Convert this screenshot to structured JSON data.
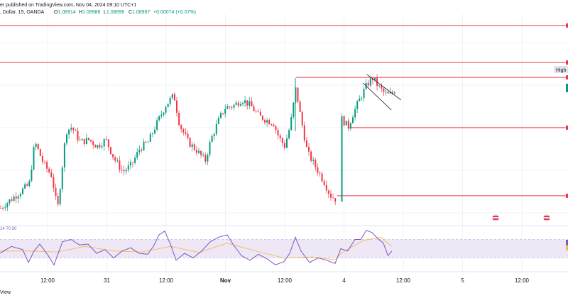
{
  "header": {
    "text": "er published on TradingView.com, Nov 04, 2024 09:10 UTC+1",
    "symbol_line": ", Dollar, 15, OANDA",
    "ohlc": [
      {
        "label": "O",
        "value": "1.08914"
      },
      {
        "label": "H",
        "value": "1.08988"
      },
      {
        "label": "L",
        "value": "1.08896"
      },
      {
        "label": "C",
        "value": "1.08987"
      }
    ],
    "change": "+0.00074 (+0.07%)"
  },
  "high_label": "High",
  "rsi_label": "14 70 30",
  "footer_text": "View",
  "colors": {
    "up": "#089981",
    "down": "#f23645",
    "level": "#f23645",
    "rsi_line": "#7e57c2",
    "rsi_ma": "#f5b942",
    "rsi_band": "#ede7f6",
    "grid": "#f0f3fa"
  },
  "chart_data": {
    "type": "candlestick",
    "x_ticks": [
      "12:00",
      "31",
      "12:00",
      "Nov",
      "12:00",
      "4",
      "12:00",
      "5",
      "12:00"
    ],
    "x_ticks_bold": [
      "Nov"
    ],
    "price_range": [
      0,
      100
    ],
    "horizontal_levels": [
      {
        "y": 94.7,
        "x_start": 0,
        "x_end": 1
      },
      {
        "y": 77.3,
        "x_start": 0,
        "x_end": 1
      },
      {
        "y": 70.3,
        "x_start": 0.521,
        "x_end": 1
      },
      {
        "y": 46.7,
        "x_start": 0.615,
        "x_end": 1
      },
      {
        "y": 14.7,
        "x_start": 0.594,
        "x_end": 1
      }
    ],
    "trend_channel": [
      {
        "from": [
          0.646,
          71.7
        ],
        "to": [
          0.706,
          59.7
        ]
      },
      {
        "from": [
          0.639,
          67.7
        ],
        "to": [
          0.689,
          55.0
        ]
      }
    ],
    "price_path": [
      [
        0.0,
        9
      ],
      [
        0.05,
        20
      ],
      [
        0.06,
        40
      ],
      [
        0.075,
        30
      ],
      [
        0.09,
        24
      ],
      [
        0.1,
        8
      ],
      [
        0.115,
        45
      ],
      [
        0.125,
        47
      ],
      [
        0.14,
        40
      ],
      [
        0.155,
        41
      ],
      [
        0.17,
        38
      ],
      [
        0.185,
        41
      ],
      [
        0.2,
        32
      ],
      [
        0.215,
        26
      ],
      [
        0.23,
        29
      ],
      [
        0.245,
        37
      ],
      [
        0.26,
        40
      ],
      [
        0.27,
        46
      ],
      [
        0.29,
        57
      ],
      [
        0.305,
        62
      ],
      [
        0.315,
        48
      ],
      [
        0.33,
        40
      ],
      [
        0.345,
        36
      ],
      [
        0.36,
        31
      ],
      [
        0.37,
        41
      ],
      [
        0.385,
        51
      ],
      [
        0.395,
        56
      ],
      [
        0.41,
        57
      ],
      [
        0.425,
        60
      ],
      [
        0.44,
        57
      ],
      [
        0.455,
        52
      ],
      [
        0.47,
        50
      ],
      [
        0.48,
        49
      ],
      [
        0.49,
        42
      ],
      [
        0.5,
        38
      ],
      [
        0.51,
        48
      ],
      [
        0.52,
        66
      ],
      [
        0.525,
        56
      ],
      [
        0.54,
        35
      ],
      [
        0.555,
        28
      ],
      [
        0.57,
        21
      ],
      [
        0.58,
        15
      ],
      [
        0.59,
        13
      ],
      [
        0.6,
        51
      ],
      [
        0.612,
        47
      ],
      [
        0.62,
        53
      ],
      [
        0.632,
        60
      ],
      [
        0.645,
        67
      ],
      [
        0.655,
        70
      ],
      [
        0.665,
        66
      ],
      [
        0.675,
        63
      ],
      [
        0.683,
        62
      ],
      [
        0.69,
        63
      ],
      [
        0.695,
        65
      ]
    ],
    "rsi": {
      "range": [
        0,
        100
      ],
      "upper": 70,
      "lower": 30,
      "values": [
        [
          0.0,
          40
        ],
        [
          0.02,
          55
        ],
        [
          0.04,
          48
        ],
        [
          0.05,
          20
        ],
        [
          0.06,
          45
        ],
        [
          0.07,
          60
        ],
        [
          0.085,
          35
        ],
        [
          0.095,
          15
        ],
        [
          0.11,
          65
        ],
        [
          0.125,
          70
        ],
        [
          0.14,
          58
        ],
        [
          0.155,
          60
        ],
        [
          0.17,
          40
        ],
        [
          0.185,
          48
        ],
        [
          0.2,
          30
        ],
        [
          0.215,
          45
        ],
        [
          0.23,
          52
        ],
        [
          0.245,
          40
        ],
        [
          0.26,
          38
        ],
        [
          0.27,
          55
        ],
        [
          0.28,
          80
        ],
        [
          0.29,
          88
        ],
        [
          0.3,
          60
        ],
        [
          0.31,
          25
        ],
        [
          0.325,
          40
        ],
        [
          0.34,
          30
        ],
        [
          0.355,
          45
        ],
        [
          0.37,
          65
        ],
        [
          0.385,
          75
        ],
        [
          0.4,
          80
        ],
        [
          0.41,
          60
        ],
        [
          0.425,
          35
        ],
        [
          0.44,
          25
        ],
        [
          0.455,
          38
        ],
        [
          0.47,
          28
        ],
        [
          0.485,
          15
        ],
        [
          0.5,
          22
        ],
        [
          0.51,
          40
        ],
        [
          0.52,
          75
        ],
        [
          0.53,
          45
        ],
        [
          0.545,
          20
        ],
        [
          0.56,
          30
        ],
        [
          0.575,
          25
        ],
        [
          0.59,
          18
        ],
        [
          0.6,
          50
        ],
        [
          0.612,
          45
        ],
        [
          0.625,
          70
        ],
        [
          0.635,
          70
        ],
        [
          0.645,
          90
        ],
        [
          0.655,
          85
        ],
        [
          0.665,
          72
        ],
        [
          0.675,
          62
        ],
        [
          0.683,
          35
        ],
        [
          0.69,
          45
        ]
      ],
      "ma": [
        [
          0.0,
          45
        ],
        [
          0.05,
          45
        ],
        [
          0.1,
          43
        ],
        [
          0.15,
          55
        ],
        [
          0.2,
          45
        ],
        [
          0.25,
          43
        ],
        [
          0.3,
          55
        ],
        [
          0.35,
          42
        ],
        [
          0.4,
          62
        ],
        [
          0.45,
          45
        ],
        [
          0.5,
          30
        ],
        [
          0.55,
          32
        ],
        [
          0.59,
          26
        ],
        [
          0.6,
          40
        ],
        [
          0.64,
          68
        ],
        [
          0.67,
          75
        ],
        [
          0.69,
          55
        ]
      ]
    }
  }
}
